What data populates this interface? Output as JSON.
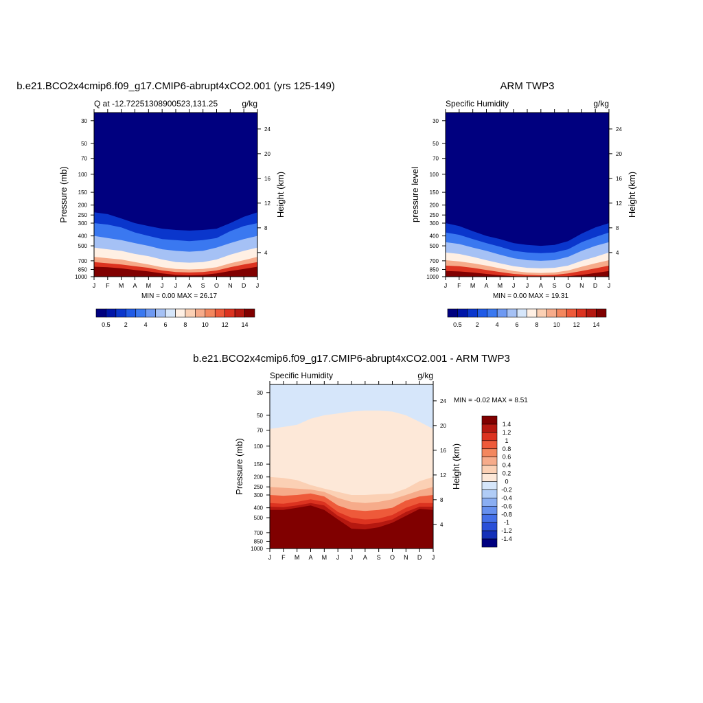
{
  "months": [
    "J",
    "F",
    "M",
    "A",
    "M",
    "J",
    "J",
    "A",
    "S",
    "O",
    "N",
    "D",
    "J"
  ],
  "pressure_ticks": [
    "30",
    "50",
    "70",
    "100",
    "150",
    "200",
    "250",
    "300",
    "400",
    "500",
    "700",
    "850",
    "1000"
  ],
  "height_ticks": [
    "24",
    "20",
    "16",
    "12",
    "8",
    "4"
  ],
  "chart_data": [
    {
      "type": "heatmap",
      "title": "b.e21.BCO2x4cmip6.f09_g17.CMIP6-abrupt4xCO2.001 (yrs 125-149)",
      "subtitle_left": "Q at -12.72251308900523,131.25",
      "subtitle_right": "g/kg",
      "ylabel": "Pressure (mb)",
      "ylabel_right": "Height (km)",
      "x": [
        "J",
        "F",
        "M",
        "A",
        "M",
        "J",
        "J",
        "A",
        "S",
        "O",
        "N",
        "D",
        "J"
      ],
      "ylim": [
        1000,
        25
      ],
      "y_scale": "log",
      "stats": "MIN =   0.00 MAX =  26.17",
      "min": 0.0,
      "max": 26.17,
      "colorbar_labels": [
        "0.5",
        "2",
        "4",
        "6",
        "8",
        "10",
        "12",
        "14"
      ],
      "colorbar_colors": [
        "#00007f",
        "#0015a8",
        "#0a36cc",
        "#1f5ae6",
        "#3a78f0",
        "#6e99f2",
        "#a5c1f5",
        "#d6e6fa",
        "#fff0e4",
        "#fbd0b4",
        "#f6ab8a",
        "#f3875e",
        "#ee5a3a",
        "#dc3320",
        "#b51810",
        "#800000"
      ],
      "iso_levels": [
        {
          "value": "0.5",
          "profile_mb": [
            235,
            245,
            270,
            300,
            320,
            340,
            350,
            355,
            350,
            340,
            300,
            260,
            235
          ]
        },
        {
          "value": "2",
          "profile_mb": [
            300,
            310,
            330,
            370,
            400,
            430,
            440,
            450,
            440,
            420,
            360,
            320,
            300
          ]
        },
        {
          "value": "4",
          "profile_mb": [
            400,
            420,
            440,
            470,
            500,
            540,
            560,
            570,
            560,
            520,
            470,
            430,
            400
          ]
        },
        {
          "value": "6",
          "profile_mb": [
            520,
            540,
            560,
            600,
            630,
            680,
            720,
            730,
            720,
            680,
            610,
            560,
            520
          ]
        },
        {
          "value": "8",
          "profile_mb": [
            640,
            660,
            680,
            720,
            760,
            810,
            840,
            850,
            840,
            810,
            740,
            690,
            640
          ]
        },
        {
          "value": "10",
          "profile_mb": [
            720,
            740,
            760,
            790,
            820,
            870,
            900,
            910,
            900,
            870,
            810,
            760,
            720
          ]
        },
        {
          "value": "14",
          "profile_mb": [
            800,
            810,
            830,
            860,
            890,
            930,
            960,
            970,
            960,
            930,
            880,
            840,
            800
          ]
        }
      ]
    },
    {
      "type": "heatmap",
      "title": "ARM TWP3",
      "subtitle_left": "Specific Humidity",
      "subtitle_right": "g/kg",
      "ylabel": "pressure level",
      "ylabel_right": "Height (km)",
      "x": [
        "J",
        "F",
        "M",
        "A",
        "M",
        "J",
        "J",
        "A",
        "S",
        "O",
        "N",
        "D",
        "J"
      ],
      "ylim": [
        1000,
        25
      ],
      "y_scale": "log",
      "stats": "MIN =   0.00 MAX =  19.31",
      "min": 0.0,
      "max": 19.31,
      "colorbar_labels": [
        "0.5",
        "2",
        "4",
        "6",
        "8",
        "10",
        "12",
        "14"
      ],
      "colorbar_colors": [
        "#00007f",
        "#0015a8",
        "#0a36cc",
        "#1f5ae6",
        "#3a78f0",
        "#6e99f2",
        "#a5c1f5",
        "#d6e6fa",
        "#fff0e4",
        "#fbd0b4",
        "#f6ab8a",
        "#f3875e",
        "#ee5a3a",
        "#dc3320",
        "#b51810",
        "#800000"
      ],
      "iso_levels": [
        {
          "value": "0.5",
          "profile_mb": [
            300,
            320,
            360,
            400,
            430,
            470,
            490,
            500,
            490,
            450,
            380,
            330,
            300
          ]
        },
        {
          "value": "2",
          "profile_mb": [
            370,
            390,
            430,
            470,
            510,
            560,
            580,
            590,
            580,
            540,
            460,
            410,
            370
          ]
        },
        {
          "value": "4",
          "profile_mb": [
            460,
            480,
            520,
            560,
            610,
            660,
            690,
            700,
            690,
            640,
            560,
            500,
            460
          ]
        },
        {
          "value": "6",
          "profile_mb": [
            580,
            600,
            640,
            690,
            740,
            790,
            820,
            830,
            820,
            780,
            700,
            640,
            580
          ]
        },
        {
          "value": "8",
          "profile_mb": [
            690,
            710,
            740,
            780,
            830,
            880,
            910,
            920,
            910,
            870,
            800,
            740,
            690
          ]
        },
        {
          "value": "10",
          "profile_mb": [
            780,
            790,
            820,
            860,
            900,
            940,
            960,
            970,
            960,
            930,
            880,
            830,
            780
          ]
        },
        {
          "value": "14",
          "profile_mb": [
            880,
            890,
            910,
            940,
            970,
            990,
            1000,
            1000,
            1000,
            990,
            960,
            920,
            880
          ]
        }
      ]
    },
    {
      "type": "heatmap",
      "title": "b.e21.BCO2x4cmip6.f09_g17.CMIP6-abrupt4xCO2.001 - ARM TWP3",
      "subtitle_left": "Specific Humidity",
      "subtitle_right": "g/kg",
      "ylabel": "Pressure (mb)",
      "ylabel_right": "Height (km)",
      "x": [
        "J",
        "F",
        "M",
        "A",
        "M",
        "J",
        "J",
        "A",
        "S",
        "O",
        "N",
        "D",
        "J"
      ],
      "ylim": [
        1000,
        25
      ],
      "y_scale": "log",
      "stats": "MIN =  -0.02 MAX =   8.51",
      "min": -0.02,
      "max": 8.51,
      "colorbar_labels": [
        "1.4",
        "1.2",
        "1",
        "0.8",
        "0.6",
        "0.4",
        "0.2",
        "0",
        "-0.2",
        "-0.4",
        "-0.6",
        "-0.8",
        "-1",
        "-1.2",
        "-1.4"
      ],
      "colorbar_colors": [
        "#800000",
        "#b51810",
        "#dc3320",
        "#ee5a3a",
        "#f3875e",
        "#f6ab8a",
        "#fbd0b4",
        "#fde8d8",
        "#d6e6fa",
        "#b0ccf6",
        "#8aaef2",
        "#6690ee",
        "#4470e8",
        "#2a50d8",
        "#1430b8",
        "#00007f"
      ],
      "iso_levels": [
        {
          "value": "0",
          "profile_mb": [
            68,
            65,
            62,
            54,
            50,
            48,
            46,
            45,
            45,
            46,
            50,
            58,
            68
          ]
        },
        {
          "value": "0.2",
          "profile_mb": [
            200,
            205,
            215,
            240,
            260,
            280,
            300,
            300,
            295,
            290,
            260,
            220,
            200
          ]
        },
        {
          "value": "0.4",
          "profile_mb": [
            250,
            255,
            260,
            265,
            280,
            320,
            350,
            360,
            350,
            330,
            300,
            270,
            250
          ]
        },
        {
          "value": "0.6",
          "profile_mb": [
            300,
            305,
            300,
            290,
            310,
            380,
            420,
            430,
            420,
            400,
            340,
            310,
            300
          ]
        },
        {
          "value": "0.8",
          "profile_mb": [
            360,
            365,
            350,
            330,
            350,
            440,
            500,
            520,
            510,
            470,
            400,
            360,
            360
          ]
        },
        {
          "value": "1",
          "profile_mb": [
            390,
            395,
            380,
            360,
            380,
            480,
            560,
            580,
            560,
            520,
            440,
            390,
            390
          ]
        },
        {
          "value": "1.4",
          "profile_mb": [
            420,
            420,
            400,
            380,
            420,
            520,
            640,
            650,
            620,
            560,
            480,
            410,
            420
          ]
        }
      ]
    }
  ]
}
